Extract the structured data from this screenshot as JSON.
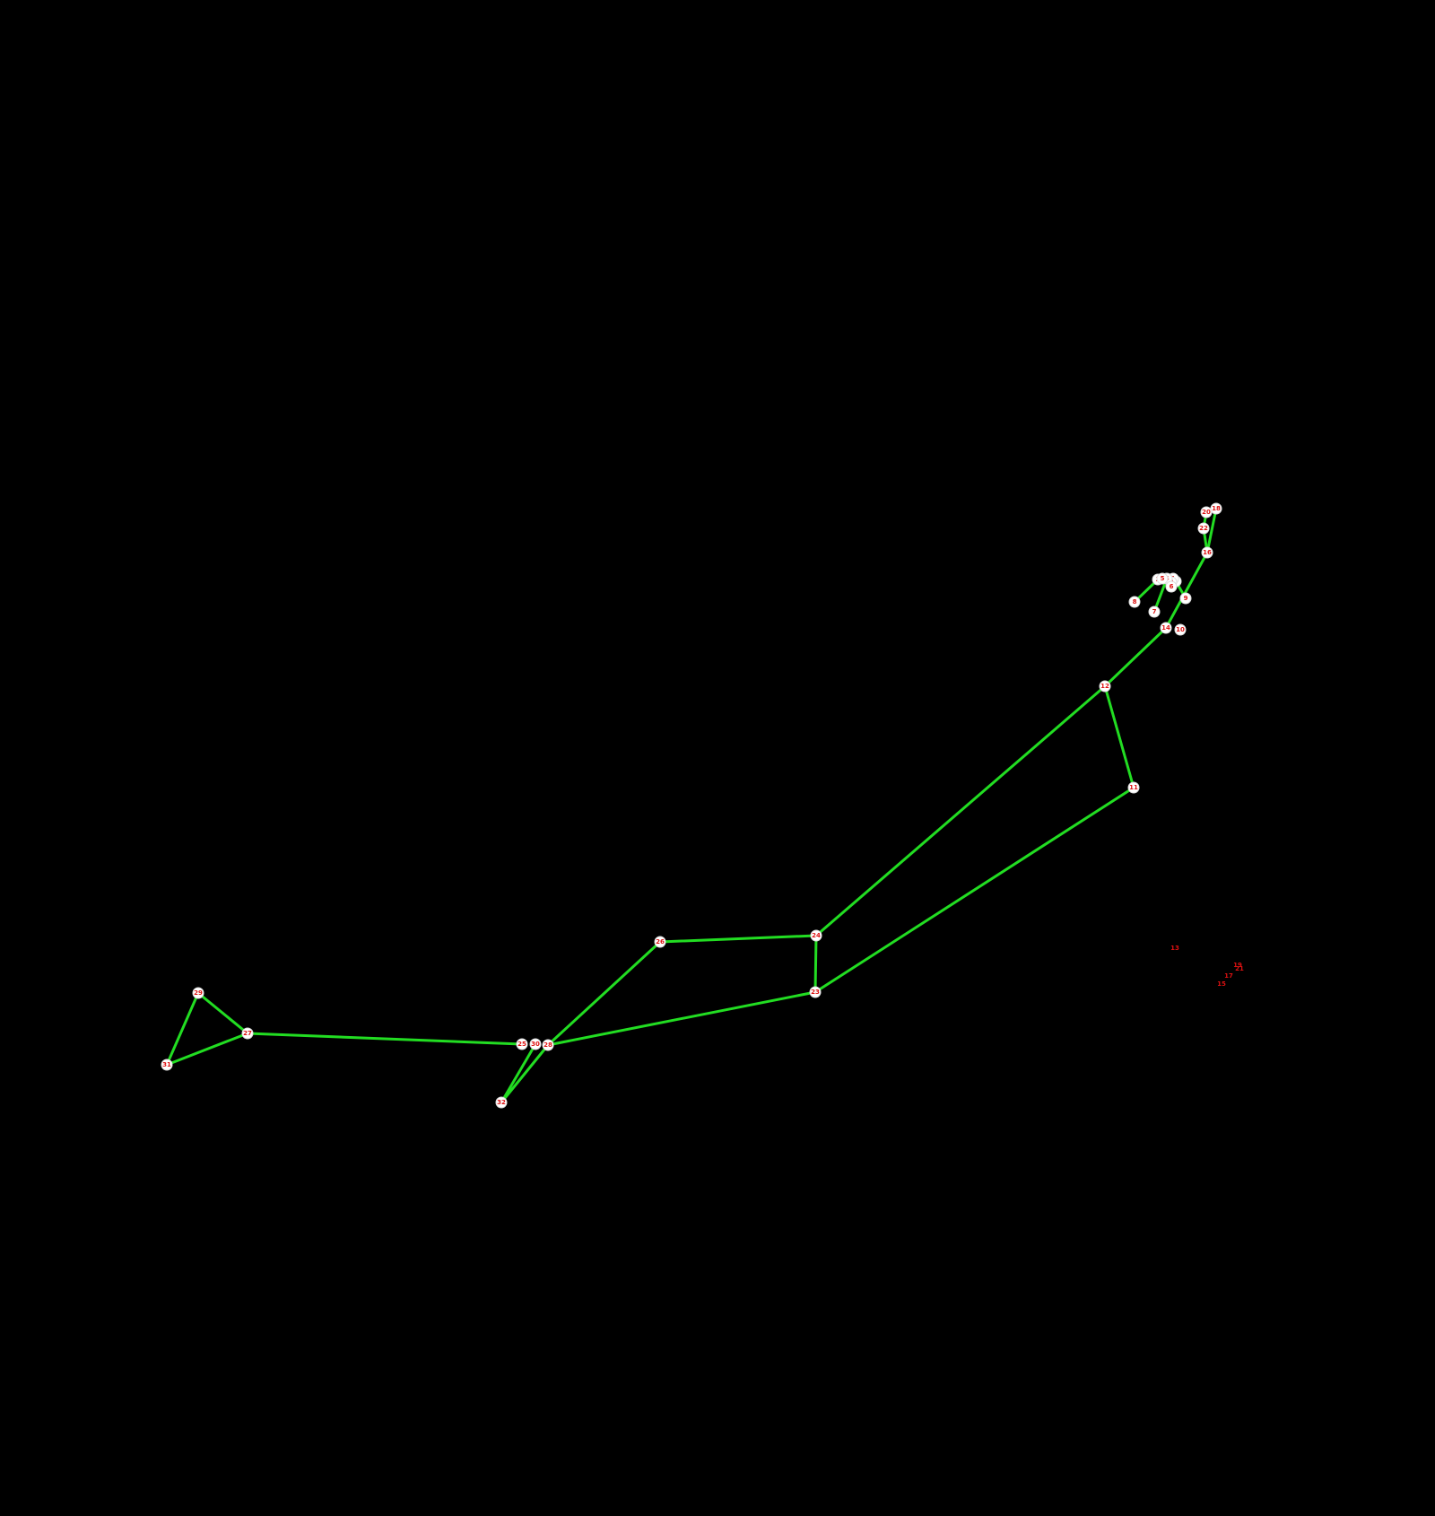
{
  "diagram": {
    "type": "pose-keypoint-graph",
    "background": "#000000",
    "edge_color": "#22dd22",
    "node_color": "#ffffff",
    "label_color": "#dd1111",
    "nodes": [
      {
        "id": "0",
        "label": "0",
        "visible": true
      },
      {
        "id": "1",
        "label": "1",
        "visible": true
      },
      {
        "id": "2",
        "label": "2",
        "visible": true
      },
      {
        "id": "3",
        "label": "3",
        "visible": true
      },
      {
        "id": "4",
        "label": "4",
        "visible": true
      },
      {
        "id": "5",
        "label": "5",
        "visible": true
      },
      {
        "id": "6",
        "label": "6",
        "visible": true
      },
      {
        "id": "7",
        "label": "7",
        "visible": true
      },
      {
        "id": "8",
        "label": "8",
        "visible": true
      },
      {
        "id": "9",
        "label": "9",
        "visible": true
      },
      {
        "id": "10",
        "label": "10",
        "visible": true
      },
      {
        "id": "11",
        "label": "11",
        "visible": true
      },
      {
        "id": "12",
        "label": "12",
        "visible": true
      },
      {
        "id": "14",
        "label": "14",
        "visible": true
      },
      {
        "id": "16",
        "label": "16",
        "visible": true
      },
      {
        "id": "18",
        "label": "18",
        "visible": true
      },
      {
        "id": "20",
        "label": "20",
        "visible": true
      },
      {
        "id": "22",
        "label": "22",
        "visible": true
      },
      {
        "id": "23",
        "label": "23",
        "visible": true
      },
      {
        "id": "24",
        "label": "24",
        "visible": true
      },
      {
        "id": "25",
        "label": "25",
        "visible": true
      },
      {
        "id": "26",
        "label": "26",
        "visible": true
      },
      {
        "id": "27",
        "label": "27",
        "visible": true
      },
      {
        "id": "28",
        "label": "28",
        "visible": true
      },
      {
        "id": "29",
        "label": "29",
        "visible": true
      },
      {
        "id": "30",
        "label": "30",
        "visible": true
      },
      {
        "id": "31",
        "label": "31",
        "visible": true
      },
      {
        "id": "32",
        "label": "32",
        "visible": true
      },
      {
        "id": "13",
        "label": "13",
        "visible": false
      },
      {
        "id": "15",
        "label": "15",
        "visible": false
      },
      {
        "id": "17",
        "label": "17",
        "visible": false
      },
      {
        "id": "19",
        "label": "19",
        "visible": false
      },
      {
        "id": "21",
        "label": "21",
        "visible": false
      }
    ],
    "edges": [
      [
        "18",
        "20"
      ],
      [
        "18",
        "16"
      ],
      [
        "20",
        "22"
      ],
      [
        "22",
        "16"
      ],
      [
        "16",
        "14"
      ],
      [
        "14",
        "12"
      ],
      [
        "12",
        "11"
      ],
      [
        "12",
        "24"
      ],
      [
        "11",
        "23"
      ],
      [
        "24",
        "23"
      ],
      [
        "24",
        "26"
      ],
      [
        "26",
        "28"
      ],
      [
        "23",
        "28"
      ],
      [
        "25",
        "27"
      ],
      [
        "27",
        "29"
      ],
      [
        "27",
        "31"
      ],
      [
        "29",
        "31"
      ],
      [
        "28",
        "32"
      ],
      [
        "30",
        "32"
      ],
      [
        "3",
        "8"
      ],
      [
        "4",
        "7"
      ],
      [
        "0",
        "9"
      ]
    ]
  }
}
